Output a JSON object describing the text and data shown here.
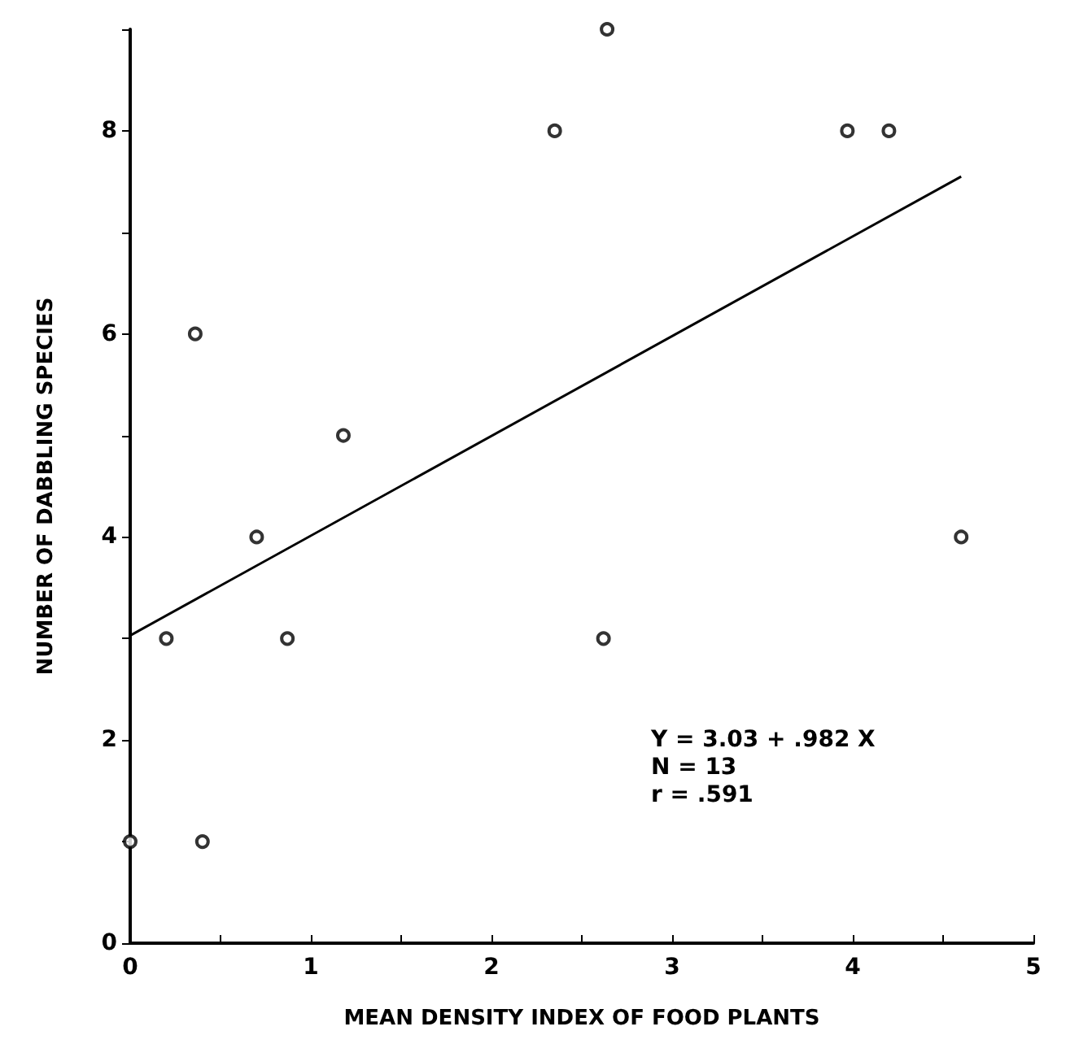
{
  "chart_data": {
    "type": "scatter",
    "xlabel": "MEAN DENSITY INDEX OF FOOD PLANTS",
    "ylabel": "NUMBER OF DABBLING SPECIES",
    "xlim": [
      0,
      5
    ],
    "ylim": [
      0,
      9
    ],
    "xticks": [
      0,
      {
        "value": 0.5,
        "label": null
      },
      1,
      {
        "value": 1.5,
        "label": null
      },
      2,
      {
        "value": 2.5,
        "label": null
      },
      3,
      {
        "value": 3.5,
        "label": null
      },
      4,
      {
        "value": 4.5,
        "label": null
      },
      5
    ],
    "yticks": [
      0,
      {
        "value": 1,
        "label": null
      },
      2,
      {
        "value": 3,
        "label": null
      },
      4,
      {
        "value": 5,
        "label": null
      },
      6,
      {
        "value": 7,
        "label": null
      },
      8,
      {
        "value": 9,
        "label": null
      }
    ],
    "grid": false,
    "series": [
      {
        "marker": "circle",
        "color": "#000000",
        "x": [
          0,
          0.2,
          0.36,
          0.4,
          0.7,
          0.87,
          1.18,
          2.35,
          2.62,
          2.64,
          3.97,
          4.2,
          4.6
        ],
        "values": [
          1,
          3,
          6,
          1,
          4,
          3,
          5,
          8,
          3,
          9,
          8,
          8,
          4
        ]
      },
      {
        "type": "line",
        "marker": "none",
        "color": "#000000",
        "x": [
          0,
          4.6
        ],
        "values": [
          3.03,
          7.55
        ]
      }
    ],
    "annotations": [
      "Y = 3.03 + .982 X",
      "N = 13",
      "r = .591"
    ]
  }
}
